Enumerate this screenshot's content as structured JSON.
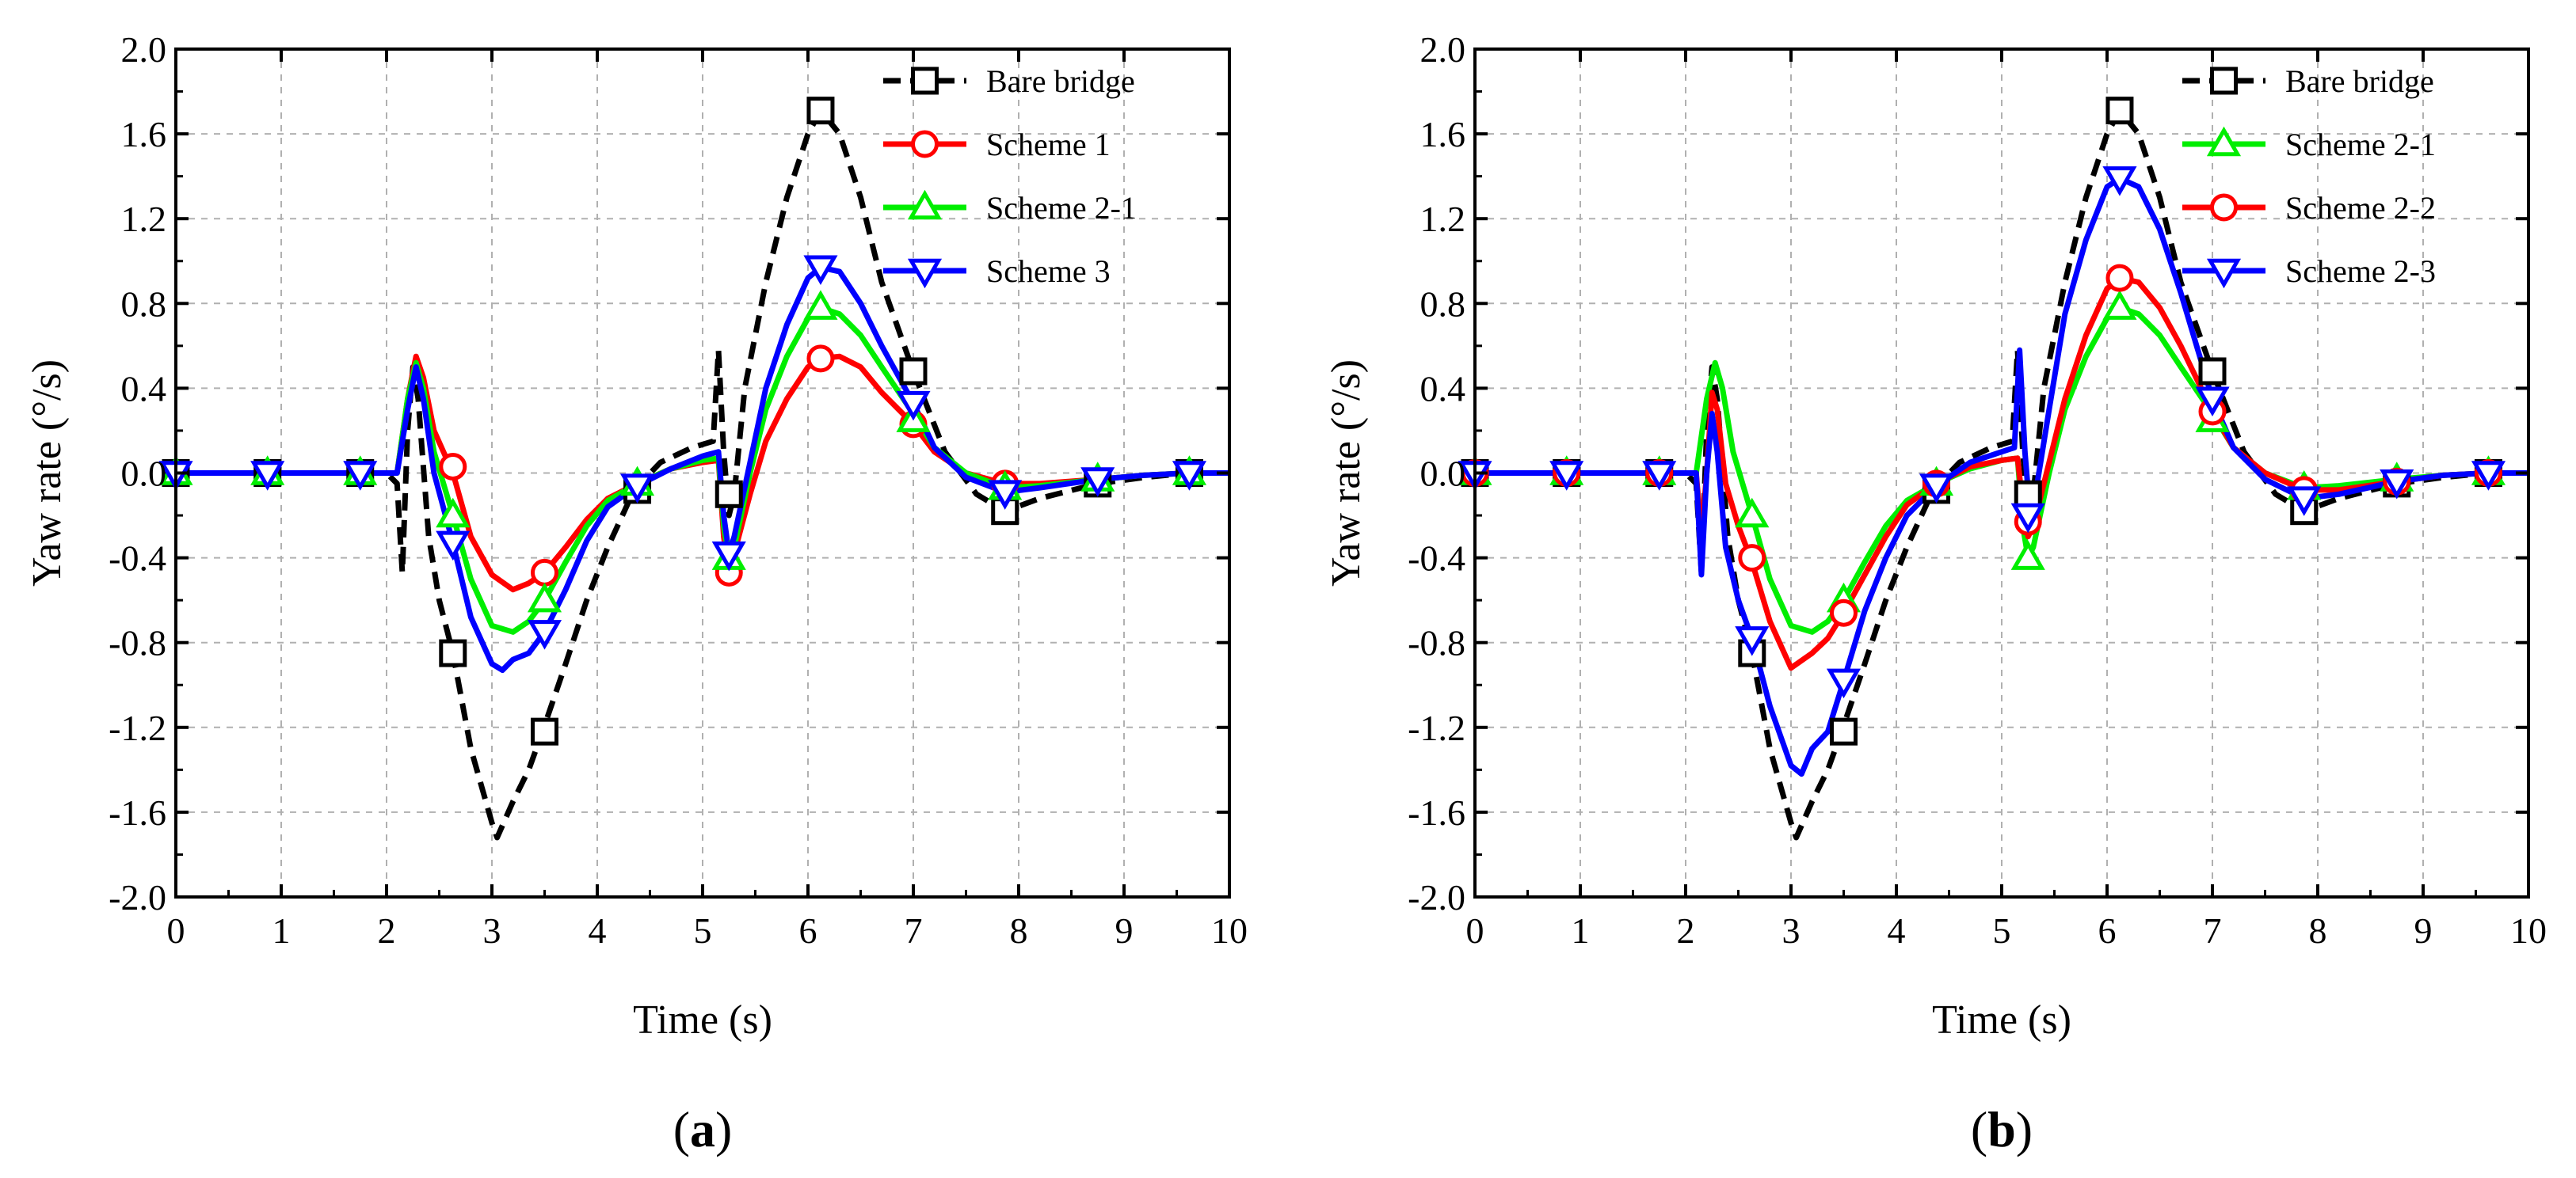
{
  "chart_data": [
    {
      "type": "line",
      "panel_label": "a",
      "caption_open": "(",
      "caption_close": ")",
      "title": "",
      "xlabel": "Time (s)",
      "ylabel": "Yaw rate (°/s)",
      "xlim": [
        0,
        10
      ],
      "ylim": [
        -2.0,
        2.0
      ],
      "xticks": [
        0,
        1,
        2,
        3,
        4,
        5,
        6,
        7,
        8,
        9,
        10
      ],
      "xtick_labels": [
        "0",
        "1",
        "2",
        "3",
        "4",
        "5",
        "6",
        "7",
        "8",
        "9",
        "10"
      ],
      "yticks": [
        -2.0,
        -1.6,
        -1.2,
        -0.8,
        -0.4,
        0.0,
        0.4,
        0.8,
        1.2,
        1.6,
        2.0
      ],
      "ytick_labels": [
        "-2.0",
        "-1.6",
        "-1.2",
        "-0.8",
        "-0.4",
        "0.0",
        "0.4",
        "0.8",
        "1.2",
        "1.6",
        "2.0"
      ],
      "grid": true,
      "legend_position": "top-right",
      "series": [
        {
          "name": "Bare bridge",
          "color": "#000000",
          "dash": "dashed",
          "marker": "square",
          "x": [
            0,
            0.87,
            1.75,
            2.0,
            2.1,
            2.15,
            2.2,
            2.25,
            2.3,
            2.4,
            2.5,
            2.63,
            2.8,
            3.0,
            3.05,
            3.2,
            3.35,
            3.48,
            3.7,
            3.9,
            4.1,
            4.35,
            4.6,
            4.9,
            5.1,
            5.15,
            5.2,
            5.25,
            5.3,
            5.4,
            5.6,
            5.8,
            6.0,
            6.12,
            6.3,
            6.5,
            6.7,
            7.0,
            7.3,
            7.6,
            7.87,
            8.2,
            8.75,
            9.2,
            9.62,
            10.0
          ],
          "y": [
            0,
            0,
            0,
            0,
            -0.05,
            -0.47,
            0.2,
            0.5,
            0.35,
            -0.3,
            -0.6,
            -0.85,
            -1.3,
            -1.65,
            -1.72,
            -1.55,
            -1.4,
            -1.22,
            -0.9,
            -0.6,
            -0.35,
            -0.08,
            0.05,
            0.12,
            0.15,
            0.58,
            0.1,
            -0.2,
            -0.1,
            0.4,
            0.9,
            1.3,
            1.6,
            1.71,
            1.6,
            1.3,
            0.9,
            0.48,
            0.1,
            -0.1,
            -0.18,
            -0.12,
            -0.05,
            -0.02,
            0.0,
            0.0
          ],
          "marker_x": [
            0,
            0.87,
            1.75,
            2.63,
            3.5,
            4.38,
            5.25,
            6.12,
            7.0,
            7.87,
            8.75,
            9.62
          ],
          "marker_y": [
            0,
            0,
            0,
            -0.85,
            -1.22,
            -0.08,
            -0.1,
            1.71,
            0.48,
            -0.18,
            -0.05,
            0.0
          ]
        },
        {
          "name": "Scheme 1",
          "color": "#ff0000",
          "dash": "solid",
          "marker": "circle",
          "x": [
            0,
            0.87,
            1.75,
            2.1,
            2.2,
            2.28,
            2.35,
            2.45,
            2.63,
            2.8,
            3.0,
            3.2,
            3.35,
            3.5,
            3.7,
            3.9,
            4.1,
            4.38,
            4.7,
            5.0,
            5.15,
            5.2,
            5.25,
            5.3,
            5.45,
            5.6,
            5.8,
            6.0,
            6.12,
            6.3,
            6.5,
            6.7,
            7.0,
            7.2,
            7.5,
            7.87,
            8.2,
            8.75,
            9.2,
            9.62,
            10.0
          ],
          "y": [
            0,
            0,
            0,
            0,
            0.35,
            0.55,
            0.45,
            0.2,
            0.0,
            -0.3,
            -0.48,
            -0.55,
            -0.52,
            -0.47,
            -0.35,
            -0.22,
            -0.12,
            -0.05,
            0.02,
            0.05,
            0.06,
            -0.3,
            -0.47,
            -0.38,
            -0.1,
            0.15,
            0.35,
            0.5,
            0.54,
            0.55,
            0.5,
            0.38,
            0.23,
            0.1,
            0.0,
            -0.05,
            -0.05,
            -0.03,
            -0.01,
            0.0,
            0.0
          ],
          "marker_x": [
            2.63,
            3.5,
            5.25,
            6.12,
            7.0,
            7.87
          ],
          "marker_y": [
            0.03,
            -0.47,
            -0.47,
            0.54,
            0.23,
            -0.05
          ]
        },
        {
          "name": "Scheme 2-1",
          "color": "#00ee00",
          "dash": "solid",
          "marker": "triangle-up",
          "x": [
            0,
            0.87,
            1.75,
            2.1,
            2.2,
            2.28,
            2.35,
            2.45,
            2.63,
            2.8,
            3.0,
            3.2,
            3.35,
            3.5,
            3.7,
            3.9,
            4.1,
            4.38,
            4.7,
            5.0,
            5.15,
            5.2,
            5.25,
            5.3,
            5.45,
            5.6,
            5.8,
            6.0,
            6.12,
            6.3,
            6.5,
            6.7,
            7.0,
            7.2,
            7.5,
            7.87,
            8.2,
            8.75,
            9.2,
            9.62,
            10.0
          ],
          "y": [
            0,
            0,
            0,
            0,
            0.35,
            0.52,
            0.4,
            0.1,
            -0.2,
            -0.5,
            -0.72,
            -0.75,
            -0.7,
            -0.6,
            -0.42,
            -0.25,
            -0.13,
            -0.05,
            0.02,
            0.06,
            0.07,
            -0.25,
            -0.4,
            -0.35,
            0.0,
            0.3,
            0.55,
            0.73,
            0.78,
            0.75,
            0.65,
            0.5,
            0.28,
            0.12,
            0.0,
            -0.07,
            -0.06,
            -0.03,
            -0.01,
            0.0,
            0.0
          ],
          "marker_x": [
            0,
            0.87,
            1.75,
            2.63,
            3.5,
            4.38,
            5.25,
            6.12,
            7.0,
            7.87,
            8.75,
            9.62
          ],
          "marker_y": [
            0,
            0,
            0,
            -0.2,
            -0.6,
            -0.05,
            -0.4,
            0.78,
            0.25,
            -0.07,
            -0.03,
            0.0
          ]
        },
        {
          "name": "Scheme 3",
          "color": "#0000ff",
          "dash": "solid",
          "marker": "triangle-down",
          "x": [
            0,
            0.87,
            1.75,
            2.1,
            2.2,
            2.28,
            2.35,
            2.45,
            2.63,
            2.8,
            3.0,
            3.1,
            3.2,
            3.35,
            3.5,
            3.7,
            3.9,
            4.1,
            4.38,
            4.7,
            5.0,
            5.15,
            5.2,
            5.25,
            5.3,
            5.45,
            5.6,
            5.8,
            6.0,
            6.12,
            6.3,
            6.5,
            6.7,
            7.0,
            7.2,
            7.5,
            7.87,
            8.2,
            8.75,
            9.2,
            9.62,
            10.0
          ],
          "y": [
            0,
            0,
            0,
            0,
            0.3,
            0.5,
            0.35,
            0.0,
            -0.33,
            -0.68,
            -0.9,
            -0.93,
            -0.88,
            -0.85,
            -0.75,
            -0.55,
            -0.32,
            -0.16,
            -0.06,
            0.02,
            0.08,
            0.1,
            -0.2,
            -0.38,
            -0.3,
            0.05,
            0.4,
            0.7,
            0.92,
            0.97,
            0.95,
            0.8,
            0.6,
            0.33,
            0.12,
            -0.02,
            -0.09,
            -0.07,
            -0.03,
            -0.01,
            0.0,
            0.0
          ],
          "marker_x": [
            0,
            0.87,
            1.75,
            2.63,
            3.5,
            4.38,
            5.25,
            6.12,
            7.0,
            7.87,
            8.75,
            9.62
          ],
          "marker_y": [
            0,
            0,
            0,
            -0.33,
            -0.75,
            -0.06,
            -0.38,
            0.97,
            0.33,
            -0.09,
            -0.03,
            0.0
          ]
        }
      ]
    },
    {
      "type": "line",
      "panel_label": "b",
      "caption_open": "(",
      "caption_close": ")",
      "title": "",
      "xlabel": "Time (s)",
      "ylabel": "Yaw rate (°/s)",
      "xlim": [
        0,
        10
      ],
      "ylim": [
        -2.0,
        2.0
      ],
      "xticks": [
        0,
        1,
        2,
        3,
        4,
        5,
        6,
        7,
        8,
        9,
        10
      ],
      "xtick_labels": [
        "0",
        "1",
        "2",
        "3",
        "4",
        "5",
        "6",
        "7",
        "8",
        "9",
        "10"
      ],
      "yticks": [
        -2.0,
        -1.6,
        -1.2,
        -0.8,
        -0.4,
        0.0,
        0.4,
        0.8,
        1.2,
        1.6,
        2.0
      ],
      "ytick_labels": [
        "-2.0",
        "-1.6",
        "-1.2",
        "-0.8",
        "-0.4",
        "0.0",
        "0.4",
        "0.8",
        "1.2",
        "1.6",
        "2.0"
      ],
      "grid": true,
      "legend_position": "top-right",
      "series": [
        {
          "name": "Bare bridge",
          "color": "#000000",
          "dash": "dashed",
          "marker": "square",
          "x": [
            0,
            0.87,
            1.75,
            2.0,
            2.1,
            2.15,
            2.2,
            2.25,
            2.3,
            2.4,
            2.5,
            2.63,
            2.8,
            3.0,
            3.05,
            3.2,
            3.35,
            3.48,
            3.7,
            3.9,
            4.1,
            4.35,
            4.6,
            4.9,
            5.1,
            5.15,
            5.2,
            5.25,
            5.3,
            5.4,
            5.6,
            5.8,
            6.0,
            6.12,
            6.3,
            6.5,
            6.7,
            7.0,
            7.3,
            7.6,
            7.87,
            8.2,
            8.75,
            9.2,
            9.62,
            10.0
          ],
          "y": [
            0,
            0,
            0,
            0,
            -0.05,
            -0.47,
            0.2,
            0.5,
            0.35,
            -0.3,
            -0.6,
            -0.85,
            -1.3,
            -1.65,
            -1.72,
            -1.55,
            -1.4,
            -1.22,
            -0.9,
            -0.6,
            -0.35,
            -0.08,
            0.05,
            0.12,
            0.15,
            0.58,
            0.1,
            -0.2,
            -0.1,
            0.4,
            0.9,
            1.3,
            1.6,
            1.71,
            1.6,
            1.3,
            0.9,
            0.48,
            0.1,
            -0.1,
            -0.18,
            -0.12,
            -0.05,
            -0.02,
            0.0,
            0.0
          ],
          "marker_x": [
            0,
            0.87,
            1.75,
            2.63,
            3.5,
            4.38,
            5.25,
            6.12,
            7.0,
            7.87,
            8.75,
            9.62
          ],
          "marker_y": [
            0,
            0,
            0,
            -0.85,
            -1.22,
            -0.08,
            -0.1,
            1.71,
            0.48,
            -0.18,
            -0.05,
            0.0
          ]
        },
        {
          "name": "Scheme 2-1",
          "color": "#00ee00",
          "dash": "solid",
          "marker": "triangle-up",
          "x": [
            0,
            0.87,
            1.75,
            2.1,
            2.2,
            2.28,
            2.35,
            2.45,
            2.63,
            2.8,
            3.0,
            3.2,
            3.35,
            3.5,
            3.7,
            3.9,
            4.1,
            4.38,
            4.7,
            5.0,
            5.15,
            5.2,
            5.25,
            5.3,
            5.45,
            5.6,
            5.8,
            6.0,
            6.12,
            6.3,
            6.5,
            6.7,
            7.0,
            7.2,
            7.5,
            7.87,
            8.2,
            8.75,
            9.2,
            9.62,
            10.0
          ],
          "y": [
            0,
            0,
            0,
            0,
            0.35,
            0.52,
            0.4,
            0.1,
            -0.2,
            -0.5,
            -0.72,
            -0.75,
            -0.7,
            -0.6,
            -0.42,
            -0.25,
            -0.13,
            -0.05,
            0.02,
            0.06,
            0.07,
            -0.25,
            -0.4,
            -0.35,
            0.0,
            0.3,
            0.55,
            0.73,
            0.78,
            0.75,
            0.65,
            0.5,
            0.28,
            0.12,
            0.0,
            -0.07,
            -0.06,
            -0.03,
            -0.01,
            0.0,
            0.0
          ],
          "marker_x": [
            0,
            0.87,
            1.75,
            2.63,
            3.5,
            4.38,
            5.25,
            6.12,
            7.0,
            7.87,
            8.75,
            9.62
          ],
          "marker_y": [
            0,
            0,
            0,
            -0.2,
            -0.6,
            -0.05,
            -0.4,
            0.78,
            0.25,
            -0.07,
            -0.03,
            0.0
          ]
        },
        {
          "name": "Scheme 2-2",
          "color": "#ff0000",
          "dash": "solid",
          "marker": "circle",
          "x": [
            0,
            0.87,
            1.75,
            2.1,
            2.15,
            2.2,
            2.25,
            2.3,
            2.38,
            2.5,
            2.63,
            2.8,
            3.0,
            3.2,
            3.35,
            3.5,
            3.7,
            3.9,
            4.1,
            4.38,
            4.7,
            5.0,
            5.15,
            5.2,
            5.25,
            5.3,
            5.45,
            5.6,
            5.8,
            6.0,
            6.12,
            6.3,
            6.5,
            6.7,
            7.0,
            7.2,
            7.5,
            7.87,
            8.2,
            8.75,
            9.2,
            9.62,
            10.0
          ],
          "y": [
            0,
            0,
            0,
            0,
            -0.3,
            0.0,
            0.38,
            0.3,
            -0.05,
            -0.25,
            -0.42,
            -0.7,
            -0.92,
            -0.85,
            -0.78,
            -0.66,
            -0.48,
            -0.3,
            -0.15,
            -0.05,
            0.03,
            0.06,
            0.07,
            -0.15,
            -0.3,
            -0.25,
            0.05,
            0.35,
            0.65,
            0.87,
            0.92,
            0.9,
            0.78,
            0.6,
            0.29,
            0.12,
            0.0,
            -0.08,
            -0.08,
            -0.04,
            -0.01,
            0.0,
            0.0
          ],
          "marker_x": [
            0,
            0.87,
            1.75,
            2.63,
            3.5,
            4.38,
            5.25,
            6.12,
            7.0,
            7.87,
            8.75,
            9.62
          ],
          "marker_y": [
            0,
            0,
            0,
            -0.4,
            -0.66,
            -0.05,
            -0.23,
            0.92,
            0.29,
            -0.08,
            -0.04,
            0.0
          ]
        },
        {
          "name": "Scheme 2-3",
          "color": "#0000ff",
          "dash": "solid",
          "marker": "triangle-down",
          "x": [
            0,
            0.87,
            1.75,
            2.1,
            2.15,
            2.2,
            2.25,
            2.3,
            2.38,
            2.5,
            2.63,
            2.8,
            3.0,
            3.1,
            3.2,
            3.35,
            3.5,
            3.7,
            3.9,
            4.1,
            4.38,
            4.7,
            5.0,
            5.12,
            5.17,
            5.22,
            5.27,
            5.32,
            5.45,
            5.6,
            5.8,
            6.0,
            6.12,
            6.3,
            6.5,
            6.7,
            7.0,
            7.2,
            7.5,
            7.87,
            8.2,
            8.75,
            9.2,
            9.62,
            10.0
          ],
          "y": [
            0,
            0,
            0,
            0,
            -0.48,
            0.0,
            0.28,
            0.1,
            -0.35,
            -0.6,
            -0.78,
            -1.1,
            -1.38,
            -1.42,
            -1.3,
            -1.22,
            -0.98,
            -0.65,
            -0.4,
            -0.2,
            -0.06,
            0.05,
            0.1,
            0.12,
            0.58,
            0.1,
            -0.2,
            -0.1,
            0.3,
            0.75,
            1.1,
            1.35,
            1.39,
            1.35,
            1.15,
            0.85,
            0.35,
            0.12,
            -0.03,
            -0.12,
            -0.1,
            -0.04,
            -0.01,
            0.0,
            0.0
          ],
          "marker_x": [
            0,
            0.87,
            1.75,
            2.63,
            3.5,
            4.38,
            5.25,
            6.12,
            7.0,
            7.87,
            8.75,
            9.62
          ],
          "marker_y": [
            0,
            0,
            0,
            -0.78,
            -0.98,
            -0.06,
            -0.2,
            1.39,
            0.35,
            -0.12,
            -0.04,
            0.0
          ]
        }
      ]
    }
  ]
}
